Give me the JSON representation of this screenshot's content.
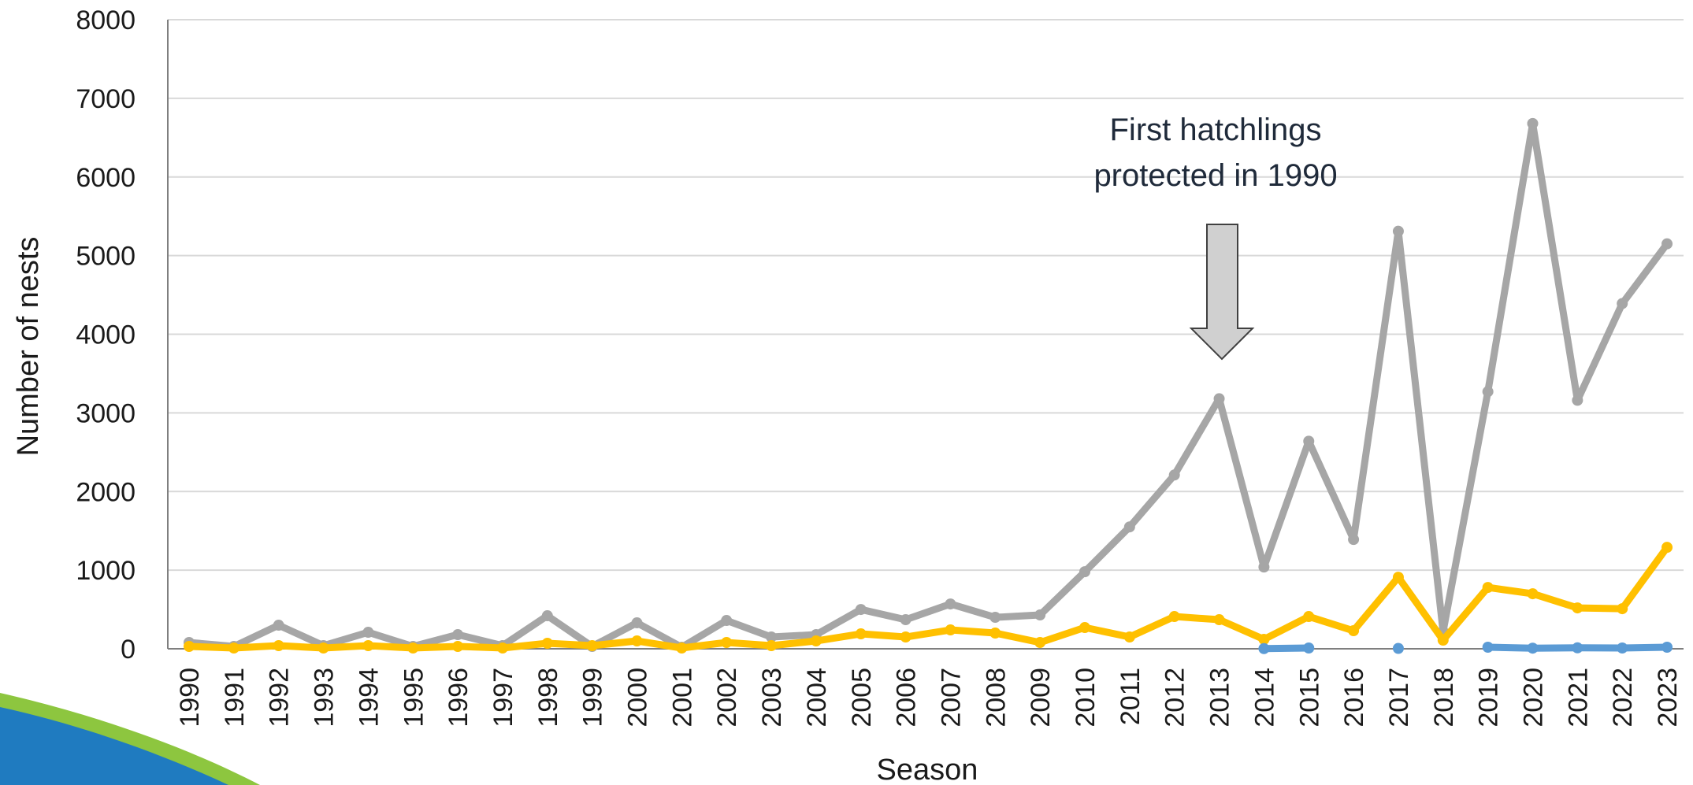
{
  "chart_data": {
    "type": "line",
    "title": "",
    "xlabel": "Season",
    "ylabel": "Number of nests",
    "ylim": [
      0,
      8000
    ],
    "yticks": [
      0,
      1000,
      2000,
      3000,
      4000,
      5000,
      6000,
      7000,
      8000
    ],
    "grid": "horizontal",
    "categories": [
      "1990",
      "1991",
      "1992",
      "1993",
      "1994",
      "1995",
      "1996",
      "1997",
      "1998",
      "1999",
      "2000",
      "2001",
      "2002",
      "2003",
      "2004",
      "2005",
      "2006",
      "2007",
      "2008",
      "2009",
      "2010",
      "2011",
      "2012",
      "2013",
      "2014",
      "2015",
      "2016",
      "2017",
      "2018",
      "2019",
      "2020",
      "2021",
      "2022",
      "2023"
    ],
    "series": [
      {
        "color": "#a6a6a6",
        "values": [
          80,
          30,
          300,
          40,
          210,
          30,
          180,
          40,
          420,
          30,
          330,
          20,
          360,
          150,
          180,
          500,
          370,
          570,
          400,
          430,
          980,
          1550,
          2210,
          3180,
          1040,
          2640,
          1390,
          5310,
          220,
          3270,
          6680,
          3160,
          4390,
          5150
        ]
      },
      {
        "color": "#ffc000",
        "values": [
          30,
          10,
          40,
          10,
          40,
          10,
          30,
          10,
          70,
          40,
          100,
          10,
          80,
          40,
          100,
          190,
          150,
          240,
          200,
          80,
          270,
          150,
          410,
          370,
          120,
          410,
          230,
          910,
          110,
          780,
          700,
          520,
          510,
          1290
        ]
      },
      {
        "color": "#5b9bd5",
        "values": [
          null,
          null,
          null,
          null,
          null,
          null,
          null,
          null,
          null,
          null,
          null,
          null,
          null,
          null,
          null,
          null,
          null,
          null,
          null,
          null,
          null,
          null,
          null,
          null,
          2,
          10,
          null,
          5,
          null,
          20,
          8,
          12,
          10,
          20
        ]
      }
    ],
    "annotation": {
      "line1": "First hatchlings",
      "line2": "protected in 1990"
    }
  },
  "decor": {
    "green": "#8dc63f",
    "blue": "#1f7bc0"
  }
}
